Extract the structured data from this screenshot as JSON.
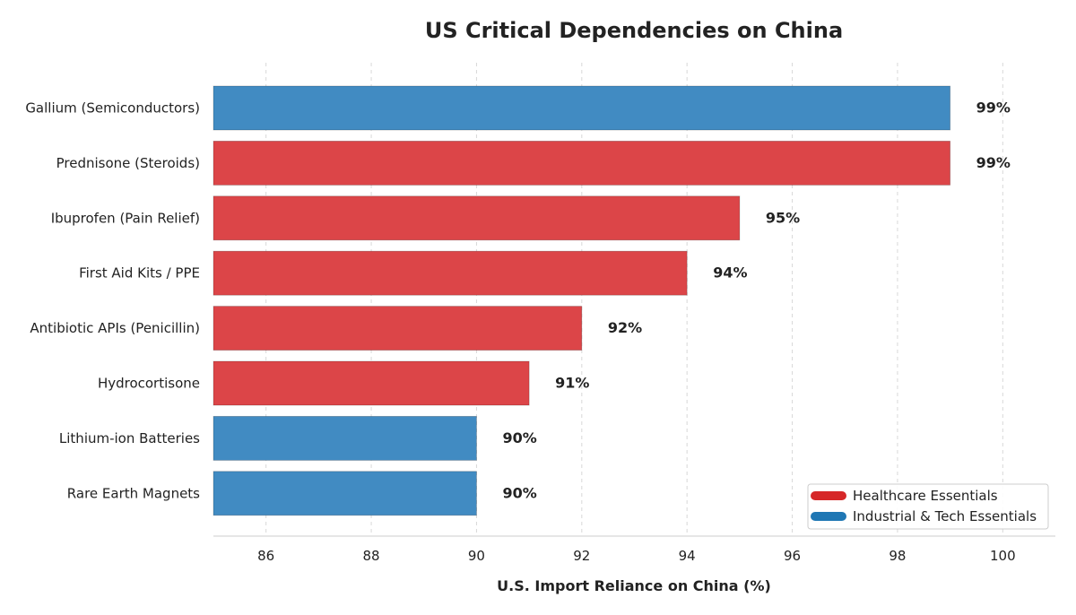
{
  "chart_data": {
    "type": "bar",
    "orientation": "horizontal",
    "title": "US Critical Dependencies on China",
    "xlabel": "U.S. Import Reliance on China (%)",
    "ylabel": "",
    "xlim": [
      85,
      101
    ],
    "ticks": [
      86,
      88,
      90,
      92,
      94,
      96,
      98,
      100
    ],
    "grid": "vertical dashed",
    "value_suffix": "%",
    "categories": [
      "Gallium (Semiconductors)",
      "Prednisone (Steroids)",
      "Ibuprofen (Pain Relief)",
      "First Aid Kits / PPE",
      "Antibiotic APIs (Penicillin)",
      "Hydrocortisone",
      "Lithium-ion Batteries",
      "Rare Earth Magnets"
    ],
    "values": [
      99,
      99,
      95,
      94,
      92,
      91,
      90,
      90
    ],
    "groups": [
      "industrial",
      "healthcare",
      "healthcare",
      "healthcare",
      "healthcare",
      "healthcare",
      "industrial",
      "industrial"
    ],
    "legend": {
      "position": "bottom-right",
      "entries": [
        {
          "key": "healthcare",
          "label": "Healthcare Essentials",
          "color": "#d62728"
        },
        {
          "key": "industrial",
          "label": "Industrial & Tech Essentials",
          "color": "#1f77b4"
        }
      ]
    },
    "colors": {
      "healthcare_bar": "#dc4548",
      "industrial_bar": "#418bc2"
    }
  }
}
